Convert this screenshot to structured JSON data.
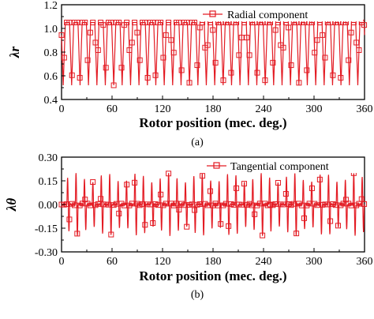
{
  "figure": {
    "colors": {
      "series": "#e31b23",
      "axes": "#000000",
      "legend_bg": "#ffffff"
    }
  },
  "chart_data": [
    {
      "type": "line",
      "panel_label": "(a)",
      "xlabel": "Rotor position (mec. deg.)",
      "ylabel": "λr",
      "xlim": [
        0,
        360
      ],
      "ylim": [
        0.4,
        1.2
      ],
      "xticks": [
        0,
        60,
        120,
        180,
        240,
        300,
        360
      ],
      "yticks": [
        0.4,
        0.6,
        0.8,
        1.0,
        1.2
      ],
      "ytick_labels": [
        "0.4",
        "0.6",
        "0.8",
        "1.0",
        "1.2"
      ],
      "legend": {
        "position": "top-right",
        "entries": [
          "Radial component"
        ]
      },
      "grid": false,
      "marker": "square",
      "series": [
        {
          "name": "Radial component",
          "pattern": "periodic dips",
          "period_deg": 10,
          "baseline": 1.05,
          "minimum": 0.52,
          "dip_width_deg": 2.5,
          "phase_deg": 2
        }
      ]
    },
    {
      "type": "line",
      "panel_label": "(b)",
      "xlabel": "Rotor position (mec. deg.)",
      "ylabel": "λθ",
      "xlim": [
        0,
        360
      ],
      "ylim": [
        -0.3,
        0.3
      ],
      "xticks": [
        0,
        60,
        120,
        180,
        240,
        300,
        360
      ],
      "yticks": [
        -0.3,
        -0.15,
        0.0,
        0.15,
        0.3
      ],
      "ytick_labels": [
        "-0.30",
        "-0.15",
        "0.00",
        "0.15",
        "0.30"
      ],
      "legend": {
        "position": "top-right",
        "entries": [
          "Tangential component"
        ]
      },
      "grid": false,
      "marker": "square",
      "series": [
        {
          "name": "Tangential component",
          "pattern": "periodic bipolar spikes",
          "period_deg": 10,
          "baseline": 0.0,
          "amplitude_range": [
            0.14,
            0.2
          ],
          "phase_deg": 8
        }
      ]
    }
  ]
}
